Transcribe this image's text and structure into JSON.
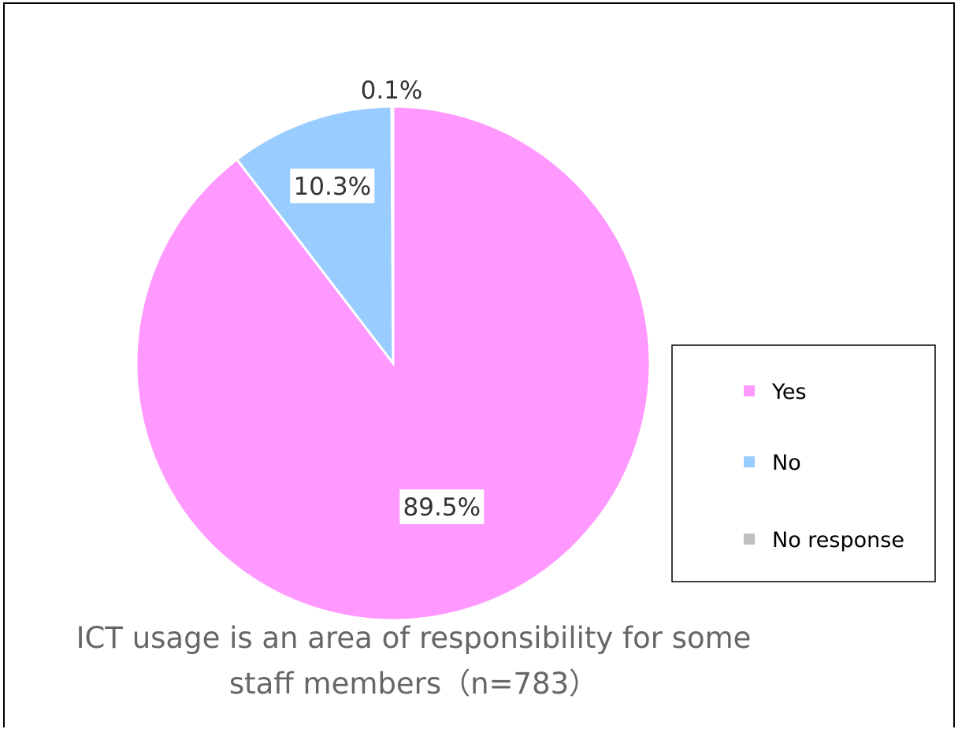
{
  "chart_data": {
    "type": "pie",
    "title": "ICT usage is an area of responsibility for some staff members（n=783）",
    "title_lines": [
      "ICT usage is an area of responsibility for some",
      "staff members（n=783）"
    ],
    "categories": [
      "Yes",
      "No",
      "No response"
    ],
    "values": [
      89.5,
      10.3,
      0.1
    ],
    "value_labels": [
      "89.5%",
      "10.3%",
      "0.1%"
    ],
    "colors": [
      "#ff99ff",
      "#99ccff",
      "#c0c0c0"
    ],
    "start_angle_deg": 0,
    "direction": "clockwise",
    "legend": {
      "position": "right",
      "entries": [
        "Yes",
        "No",
        "No response"
      ]
    }
  }
}
